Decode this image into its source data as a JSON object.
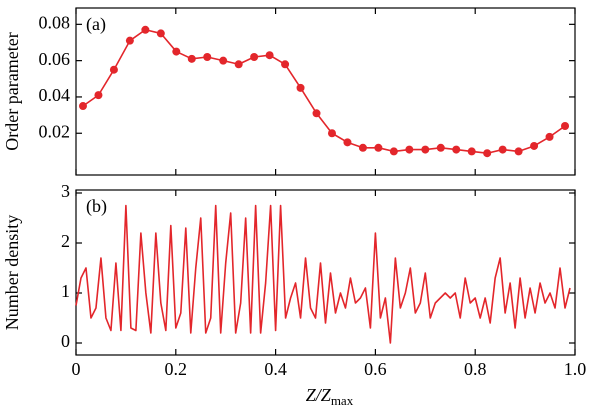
{
  "chart_data": [
    {
      "type": "line",
      "annotation": "(a)",
      "ylabel": "Order parameter",
      "markers": true,
      "xlim": [
        0,
        1
      ],
      "ylim": [
        -0.003,
        0.089
      ],
      "yticks": [
        0.02,
        0.04,
        0.06,
        0.08
      ],
      "x": [
        0.014,
        0.045,
        0.076,
        0.108,
        0.139,
        0.17,
        0.201,
        0.232,
        0.263,
        0.295,
        0.326,
        0.357,
        0.388,
        0.419,
        0.45,
        0.482,
        0.513,
        0.544,
        0.575,
        0.606,
        0.637,
        0.668,
        0.7,
        0.731,
        0.762,
        0.793,
        0.824,
        0.855,
        0.887,
        0.918,
        0.949,
        0.98
      ],
      "series": [
        {
          "color": "#e3262b",
          "values": [
            0.035,
            0.041,
            0.055,
            0.071,
            0.077,
            0.075,
            0.065,
            0.061,
            0.062,
            0.06,
            0.058,
            0.062,
            0.063,
            0.058,
            0.045,
            0.031,
            0.02,
            0.015,
            0.012,
            0.012,
            0.01,
            0.011,
            0.011,
            0.012,
            0.011,
            0.01,
            0.009,
            0.011,
            0.01,
            0.013,
            0.018,
            0.024
          ]
        }
      ]
    },
    {
      "type": "line",
      "annotation": "(b)",
      "ylabel": "Number density",
      "markers": false,
      "xlabel": "Z/Z",
      "xlabel_subscript": "max",
      "xlim": [
        0,
        1
      ],
      "xticks": [
        0,
        0.2,
        0.4,
        0.6,
        0.8,
        {
          "value": 1,
          "label": "1.0"
        }
      ],
      "ylim": [
        -0.24,
        3.06
      ],
      "yticks": [
        0,
        1,
        2,
        3
      ],
      "x": [
        0,
        0.01,
        0.02,
        0.03,
        0.04,
        0.05,
        0.06,
        0.07,
        0.08,
        0.09,
        0.1,
        0.11,
        0.12,
        0.13,
        0.14,
        0.15,
        0.16,
        0.17,
        0.18,
        0.19,
        0.2,
        0.21,
        0.22,
        0.23,
        0.24,
        0.25,
        0.26,
        0.27,
        0.28,
        0.29,
        0.3,
        0.31,
        0.32,
        0.33,
        0.34,
        0.35,
        0.36,
        0.37,
        0.38,
        0.39,
        0.4,
        0.41,
        0.42,
        0.43,
        0.44,
        0.45,
        0.46,
        0.47,
        0.48,
        0.49,
        0.5,
        0.51,
        0.52,
        0.53,
        0.54,
        0.55,
        0.56,
        0.57,
        0.58,
        0.59,
        0.6,
        0.61,
        0.62,
        0.63,
        0.64,
        0.65,
        0.66,
        0.67,
        0.68,
        0.69,
        0.7,
        0.71,
        0.72,
        0.73,
        0.74,
        0.75,
        0.76,
        0.77,
        0.78,
        0.79,
        0.8,
        0.81,
        0.82,
        0.83,
        0.84,
        0.85,
        0.86,
        0.87,
        0.88,
        0.89,
        0.9,
        0.91,
        0.92,
        0.93,
        0.94,
        0.95,
        0.96,
        0.97,
        0.98,
        0.99
      ],
      "series": [
        {
          "color": "#e3262b",
          "values": [
            0.75,
            1.3,
            1.5,
            0.5,
            0.7,
            1.7,
            0.5,
            0.25,
            1.6,
            0.25,
            2.75,
            0.3,
            0.25,
            2.2,
            1.0,
            0.2,
            2.2,
            0.8,
            0.25,
            2.35,
            0.3,
            0.6,
            2.3,
            0.2,
            1.5,
            2.5,
            0.2,
            0.5,
            2.75,
            0.2,
            1.6,
            2.6,
            0.2,
            0.8,
            2.5,
            0.2,
            2.75,
            0.2,
            1.2,
            2.75,
            0.25,
            2.75,
            0.5,
            0.9,
            1.2,
            0.5,
            1.7,
            0.7,
            0.5,
            1.6,
            0.4,
            1.4,
            0.6,
            1.0,
            0.7,
            1.3,
            0.8,
            0.9,
            1.1,
            0.3,
            2.2,
            0.5,
            0.9,
            0.0,
            1.7,
            0.7,
            1.0,
            1.5,
            0.6,
            0.8,
            1.4,
            0.5,
            0.8,
            0.9,
            1.0,
            0.9,
            1.0,
            0.5,
            1.3,
            0.8,
            0.9,
            0.5,
            0.9,
            0.4,
            1.3,
            1.7,
            0.6,
            1.2,
            0.3,
            1.3,
            0.5,
            1.1,
            0.6,
            1.2,
            0.8,
            1.0,
            0.7,
            1.5,
            0.7,
            1.1
          ]
        }
      ]
    }
  ]
}
